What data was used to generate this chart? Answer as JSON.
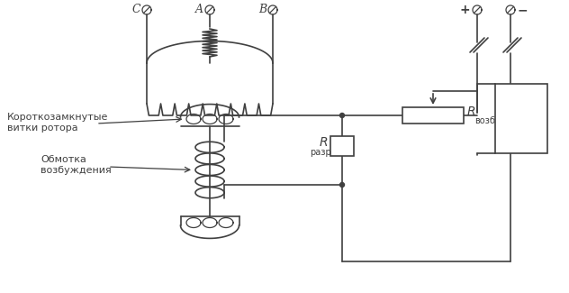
{
  "bg_color": "#ffffff",
  "line_color": "#404040",
  "line_width": 1.2,
  "labels": {
    "C": "C",
    "A": "A",
    "B": "B",
    "plus": "+",
    "minus": "−",
    "Rvozb_R": "R",
    "Rvozb_sub": "возб",
    "Rrazr_R": "R",
    "Rrazr_sub": "разр",
    "label1_line1": "Короткозамкнутые",
    "label1_line2": "витки ротора",
    "label2_line1": "Обмотка",
    "label2_line2": "возбуждения"
  }
}
